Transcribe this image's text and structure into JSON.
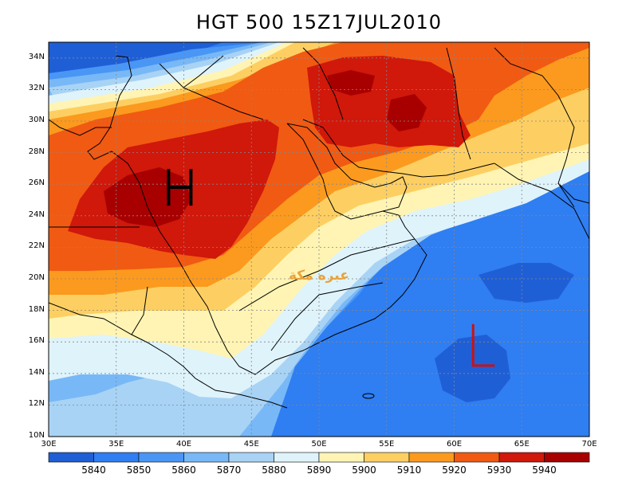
{
  "title": "HGT 500 15Z17JUL2010",
  "watermark": "عبره مكة",
  "map": {
    "lon_range": [
      30,
      70
    ],
    "lat_range": [
      10,
      35
    ],
    "lat_ticks": [
      "34N",
      "32N",
      "30N",
      "28N",
      "26N",
      "24N",
      "22N",
      "20N",
      "18N",
      "16N",
      "14N",
      "12N",
      "10N"
    ],
    "lon_ticks": [
      "30E",
      "35E",
      "40E",
      "45E",
      "50E",
      "55E",
      "60E",
      "65E",
      "70E"
    ],
    "grid": true,
    "high_marker": {
      "label": "H",
      "lon": 39.7,
      "lat": 25.8,
      "color": "#000000"
    },
    "low_marker": {
      "label": "L",
      "lon": 61.4,
      "lat": 14.6,
      "color": "#cc1111"
    }
  },
  "colorbar": {
    "labels": [
      "5840",
      "5850",
      "5860",
      "5870",
      "5880",
      "5890",
      "5900",
      "5910",
      "5920",
      "5930",
      "5940"
    ],
    "colors": [
      "#1f5fd6",
      "#2f7ef2",
      "#4a96f5",
      "#78b8f7",
      "#a8d3f5",
      "#dff3fb",
      "#fff4b3",
      "#fdcf62",
      "#fb9a1e",
      "#f15a12",
      "#d0180b",
      "#a80000"
    ]
  }
}
